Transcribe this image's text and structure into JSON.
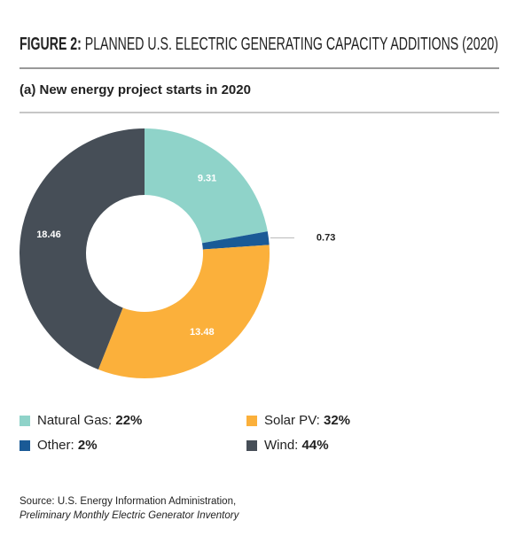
{
  "chart_data": {
    "type": "donut",
    "title_prefix": "FIGURE 2:",
    "title": "PLANNED U.S. ELECTRIC GENERATING CAPACITY ADDITIONS (2020)",
    "subtitle": "(a) New energy project starts in 2020",
    "categories": [
      "Natural Gas:",
      "Other:",
      "Solar PV:",
      "Wind:"
    ],
    "values": [
      9.31,
      0.73,
      13.48,
      18.46
    ],
    "colors": [
      "#8fd3c9",
      "#1a5a96",
      "#fbb03b",
      "#464e57"
    ],
    "shares": [
      {
        "value": 22,
        "label": "22%"
      },
      {
        "value": 2,
        "label": "2%"
      },
      {
        "value": 32,
        "label": "32%"
      },
      {
        "value": 44,
        "label": "44%"
      }
    ],
    "source": "Source: U.S. Energy Information Administration,",
    "source_title": "Preliminary Monthly Electric Generator Inventory"
  }
}
